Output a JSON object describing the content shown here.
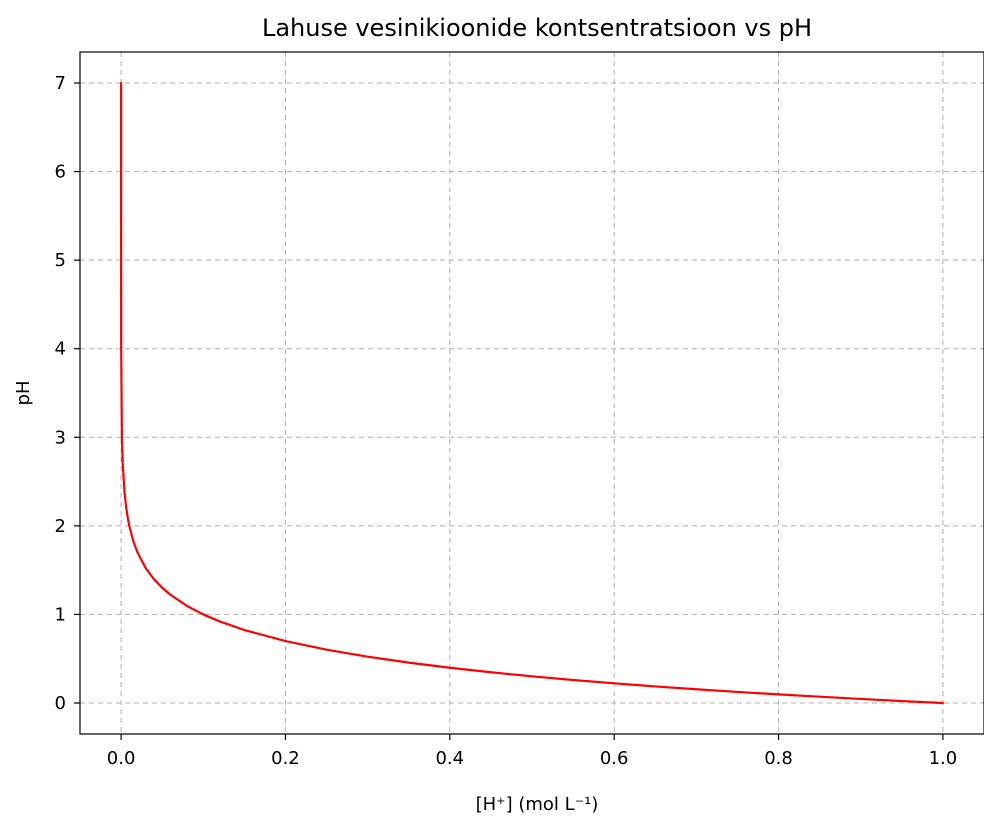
{
  "chart_data": {
    "type": "line",
    "title": "Lahuse vesinikioonide kontsentratsioon vs pH",
    "xlabel": "[H⁺] (mol L⁻¹)",
    "ylabel": "pH",
    "xlim": [
      -0.05,
      1.05
    ],
    "ylim": [
      -0.35,
      7.35
    ],
    "xticks": [
      0.0,
      0.2,
      0.4,
      0.6,
      0.8,
      1.0
    ],
    "xtick_labels": [
      "0.0",
      "0.2",
      "0.4",
      "0.6",
      "0.8",
      "1.0"
    ],
    "yticks": [
      0,
      1,
      2,
      3,
      4,
      5,
      6,
      7
    ],
    "ytick_labels": [
      "0",
      "1",
      "2",
      "3",
      "4",
      "5",
      "6",
      "7"
    ],
    "grid": true,
    "series": [
      {
        "color": "#ff0000",
        "x": [
          1e-07,
          1e-05,
          0.0001,
          0.001,
          0.002,
          0.004,
          0.006,
          0.008,
          0.01,
          0.015,
          0.02,
          0.03,
          0.04,
          0.05,
          0.06,
          0.08,
          0.1,
          0.12,
          0.15,
          0.2,
          0.25,
          0.3,
          0.35,
          0.4,
          0.45,
          0.5,
          0.55,
          0.6,
          0.65,
          0.7,
          0.75,
          0.8,
          0.85,
          0.9,
          0.95,
          1.0
        ],
        "y": [
          7.0,
          5.0,
          4.0,
          3.0,
          2.699,
          2.398,
          2.222,
          2.097,
          2.0,
          1.824,
          1.699,
          1.523,
          1.398,
          1.301,
          1.222,
          1.097,
          1.0,
          0.921,
          0.824,
          0.699,
          0.602,
          0.523,
          0.456,
          0.398,
          0.347,
          0.301,
          0.26,
          0.222,
          0.187,
          0.155,
          0.125,
          0.097,
          0.071,
          0.046,
          0.022,
          0.0
        ]
      }
    ]
  }
}
